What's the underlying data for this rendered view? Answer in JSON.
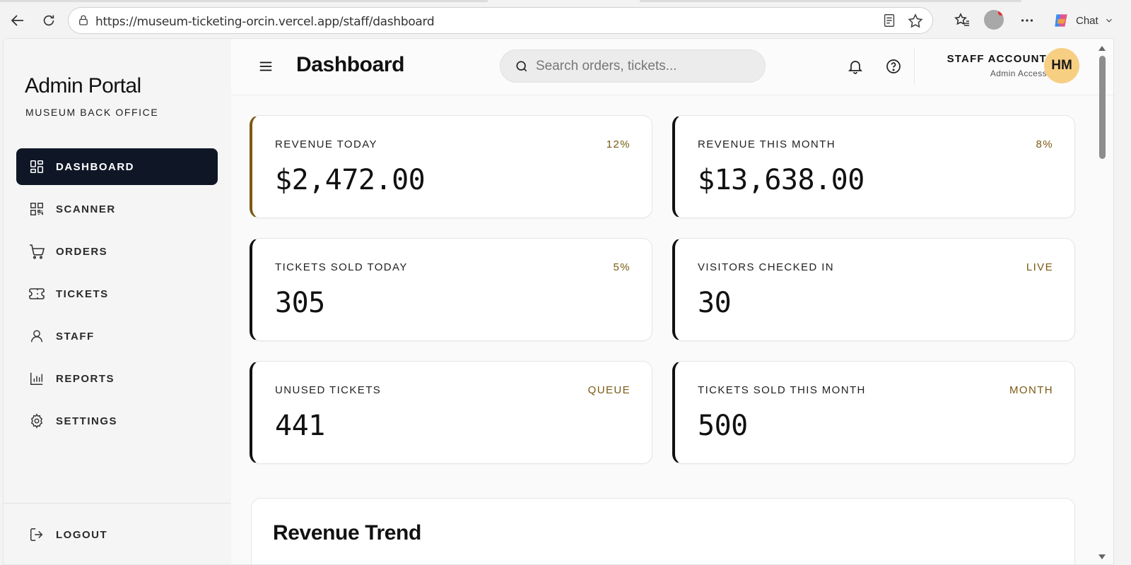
{
  "browser": {
    "url": "https://museum-ticketing-orcin.vercel.app/staff/dashboard",
    "chat_label": "Chat"
  },
  "sidebar": {
    "title": "Admin Portal",
    "subtitle": "MUSEUM BACK OFFICE",
    "items": [
      {
        "label": "DASHBOARD",
        "icon": "grid-icon",
        "active": true
      },
      {
        "label": "SCANNER",
        "icon": "qr-code-icon",
        "active": false
      },
      {
        "label": "ORDERS",
        "icon": "cart-icon",
        "active": false
      },
      {
        "label": "TICKETS",
        "icon": "ticket-icon",
        "active": false
      },
      {
        "label": "STAFF",
        "icon": "user-icon",
        "active": false
      },
      {
        "label": "REPORTS",
        "icon": "bar-chart-icon",
        "active": false
      },
      {
        "label": "SETTINGS",
        "icon": "gear-icon",
        "active": false
      }
    ],
    "logout_label": "LOGOUT"
  },
  "header": {
    "title": "Dashboard",
    "search_placeholder": "Search orders, tickets...",
    "account_name": "STAFF ACCOUNT",
    "account_role": "Admin Access",
    "avatar_initials": "HM"
  },
  "stats": [
    {
      "label": "REVENUE TODAY",
      "badge": "12%",
      "value": "$2,472.00"
    },
    {
      "label": "REVENUE THIS MONTH",
      "badge": "8%",
      "value": "$13,638.00"
    },
    {
      "label": "TICKETS SOLD TODAY",
      "badge": "5%",
      "value": "305"
    },
    {
      "label": "VISITORS CHECKED IN",
      "badge": "LIVE",
      "value": "30"
    },
    {
      "label": "UNUSED TICKETS",
      "badge": "QUEUE",
      "value": "441"
    },
    {
      "label": "TICKETS SOLD THIS MONTH",
      "badge": "MONTH",
      "value": "500"
    }
  ],
  "revenue_trend": {
    "title": "Revenue Trend"
  },
  "colors": {
    "accent_gold": "#7b5a12",
    "nav_active_bg": "#0f1727",
    "avatar_bg": "#f7cf82"
  }
}
